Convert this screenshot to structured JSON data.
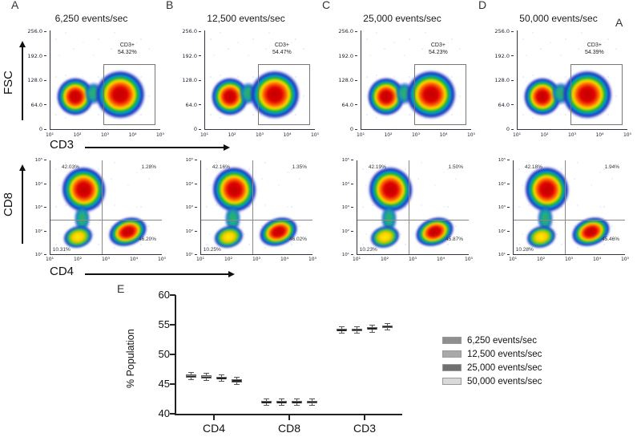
{
  "corner_label": "A",
  "panel_e_label": "E",
  "top_axis": {
    "y_label": "FSC",
    "x_label": "CD3",
    "y_ticks": [
      "256.0",
      "192.0",
      "128.0",
      "64.0",
      "0"
    ],
    "x_ticks": [
      "10¹",
      "10²",
      "10³",
      "10⁴",
      "10⁵"
    ]
  },
  "bottom_axis": {
    "y_label": "CD8",
    "x_label": "CD4",
    "y_ticks": [
      "10⁵",
      "10⁴",
      "10³",
      "10²",
      "10¹"
    ],
    "x_ticks": [
      "10¹",
      "10²",
      "10³",
      "10⁴",
      "10⁵"
    ]
  },
  "panels": [
    {
      "label": "A",
      "title": "6,250 events/sec",
      "top": {
        "gate_name": "CD3+",
        "gate_pct": "54.32%"
      },
      "bottom": {
        "tl": "42.03%",
        "tr": "1.28%",
        "bl": "10.31%",
        "br": "46.20%"
      }
    },
    {
      "label": "B",
      "title": "12,500 events/sec",
      "top": {
        "gate_name": "CD3+",
        "gate_pct": "54.47%"
      },
      "bottom": {
        "tl": "42.16%",
        "tr": "1.35%",
        "bl": "10.25%",
        "br": "46.02%"
      }
    },
    {
      "label": "C",
      "title": "25,000 events/sec",
      "top": {
        "gate_name": "CD3+",
        "gate_pct": "54.23%"
      },
      "bottom": {
        "tl": "42.19%",
        "tr": "1.50%",
        "bl": "10.23%",
        "br": "45.87%"
      }
    },
    {
      "label": "D",
      "title": "50,000 events/sec",
      "top": {
        "gate_name": "CD3+",
        "gate_pct": "54.39%"
      },
      "bottom": {
        "tl": "42.18%",
        "tr": "1.94%",
        "bl": "10.28%",
        "br": "45.46%"
      }
    }
  ],
  "chart_data": {
    "type": "box",
    "title": "",
    "xlabel": "",
    "ylabel": "% Population",
    "ylim": [
      40,
      60
    ],
    "yticks": [
      40,
      45,
      50,
      55,
      60
    ],
    "categories": [
      "CD4",
      "CD8",
      "CD3"
    ],
    "legend_position": "right",
    "grid": false,
    "series": [
      {
        "name": "6,250 events/sec",
        "color": "#8f8f8f",
        "values": [
          46.35,
          41.95,
          54.1
        ]
      },
      {
        "name": "12,500 events/sec",
        "color": "#a9a9a9",
        "values": [
          46.2,
          41.95,
          54.15
        ]
      },
      {
        "name": "25,000 events/sec",
        "color": "#707070",
        "values": [
          46.0,
          41.95,
          54.35
        ]
      },
      {
        "name": "50,000 events/sec",
        "color": "#d9d9d9",
        "values": [
          45.55,
          42.0,
          54.7
        ]
      }
    ]
  }
}
